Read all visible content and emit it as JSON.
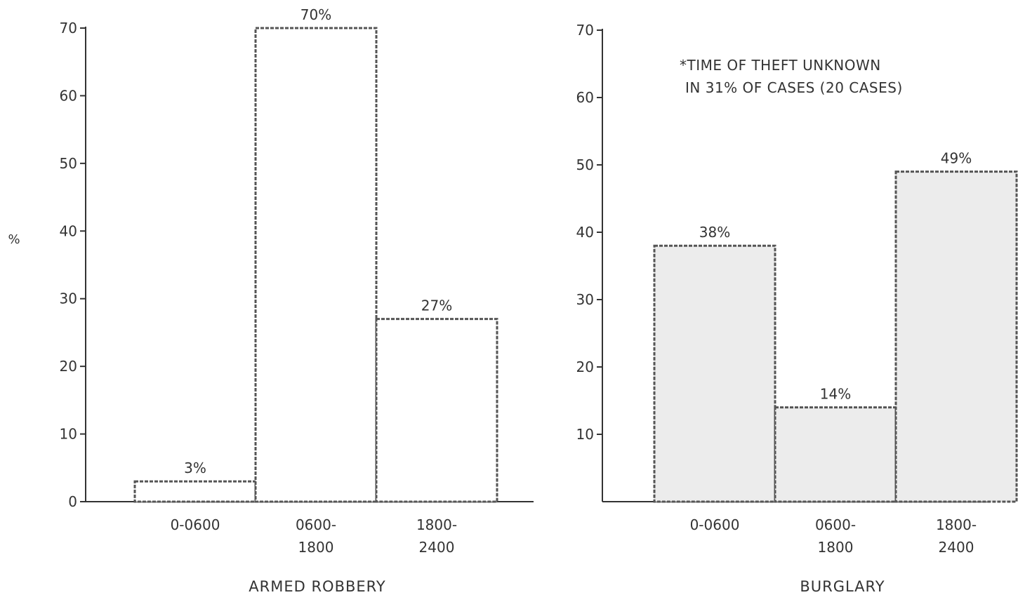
{
  "chart_data": [
    {
      "type": "bar",
      "title": "ARMED ROBBERY",
      "ylabel": "%",
      "ylim": [
        0,
        70
      ],
      "yticks": [
        "0",
        "10",
        "20",
        "30",
        "40",
        "50",
        "60",
        "70"
      ],
      "categories": [
        {
          "line1": "0-0600",
          "line2": ""
        },
        {
          "line1": "0600-",
          "line2": "1800"
        },
        {
          "line1": "1800-",
          "line2": "2400"
        }
      ],
      "values": [
        3,
        70,
        27
      ],
      "value_labels": [
        "3%",
        "70%",
        "27%"
      ],
      "fill": "#ffffff"
    },
    {
      "type": "bar",
      "title": "BURGLARY",
      "ylabel": "",
      "ylim": [
        0,
        70
      ],
      "yticks": [
        "10",
        "20",
        "30",
        "40",
        "50",
        "60",
        "70"
      ],
      "categories": [
        {
          "line1": "0-0600",
          "line2": ""
        },
        {
          "line1": "0600-",
          "line2": "1800"
        },
        {
          "line1": "1800-",
          "line2": "2400"
        }
      ],
      "values": [
        38,
        14,
        49
      ],
      "value_labels": [
        "38%",
        "14%",
        "49%"
      ],
      "fill": "#ececec",
      "note": [
        "*TIME OF THEFT UNKNOWN",
        "IN 31% OF CASES (20 CASES)"
      ]
    }
  ]
}
